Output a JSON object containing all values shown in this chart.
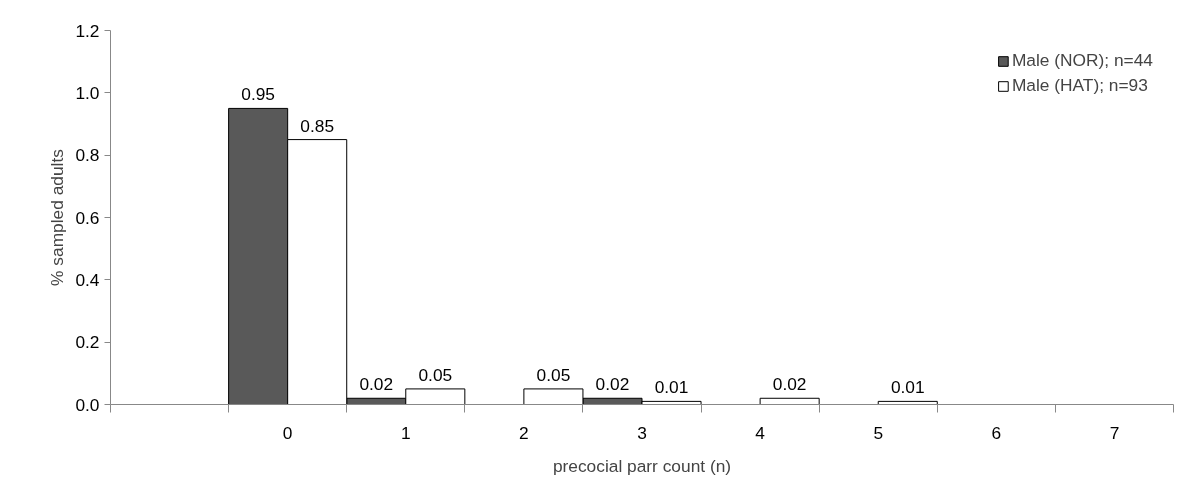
{
  "chart_data": {
    "type": "bar",
    "xlabel": "precocial parr count (n)",
    "ylabel": "% sampled adults",
    "categories": [
      null,
      "0",
      "1",
      "2",
      "3",
      "4",
      "5",
      "6",
      "7"
    ],
    "series": [
      {
        "name": "Male (NOR); n=44",
        "color": "#595959",
        "values": [
          null,
          0.95,
          0.02,
          null,
          0.02,
          null,
          null,
          null,
          null
        ],
        "value_labels": [
          null,
          "0.95",
          "0.02",
          null,
          "0.02",
          null,
          null,
          null,
          null
        ]
      },
      {
        "name": "Male (HAT); n=93",
        "color": "#ffffff",
        "values": [
          null,
          0.85,
          0.05,
          0.05,
          0.01,
          0.02,
          0.01,
          null,
          null
        ],
        "value_labels": [
          null,
          "0.85",
          "0.05",
          "0.05",
          "0.01",
          "0.02",
          "0.01",
          null,
          null
        ]
      }
    ],
    "ylim": [
      0,
      1.2
    ],
    "yticks": [
      {
        "value": 0,
        "label": "0.0"
      },
      0.2,
      0.4,
      0.6,
      0.8,
      {
        "value": 1,
        "label": "1.0"
      },
      1.2
    ],
    "grid": false,
    "legend": "top right"
  }
}
